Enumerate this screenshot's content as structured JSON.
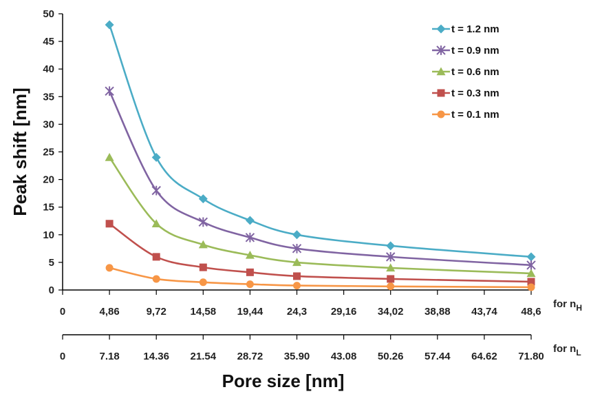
{
  "chart_data": {
    "type": "line",
    "ylabel": "Peak shift [nm]",
    "xlabel": "Pore size [nm]",
    "ylim": [
      0,
      50
    ],
    "yticks": [
      0,
      5,
      10,
      15,
      20,
      25,
      30,
      35,
      40,
      45,
      50
    ],
    "grid": false,
    "legend_position": "top-right",
    "x_axes": [
      {
        "label_main": "for n",
        "label_sub": "H",
        "ticks": [
          "0",
          "4,86",
          "9,72",
          "14,58",
          "19,44",
          "24,3",
          "29,16",
          "34,02",
          "38,88",
          "43,74",
          "48,6"
        ]
      },
      {
        "label_main": "for n",
        "label_sub": "L",
        "ticks": [
          "0",
          "7.18",
          "14.36",
          "21.54",
          "28.72",
          "35.90",
          "43.08",
          "50.26",
          "57.44",
          "64.62",
          "71.80"
        ]
      }
    ],
    "x": [
      4.86,
      9.72,
      14.58,
      19.44,
      24.3,
      34.02,
      48.6
    ],
    "xlim": [
      0,
      48.6
    ],
    "series": [
      {
        "name": "t = 1.2 nm",
        "color": "#4BACC6",
        "marker": "diamond",
        "values": [
          48,
          24,
          16.5,
          12.6,
          10,
          8,
          6
        ]
      },
      {
        "name": "t = 0.9 nm",
        "color": "#8064A2",
        "marker": "asterisk",
        "values": [
          36,
          18,
          12.3,
          9.5,
          7.5,
          6,
          4.5
        ]
      },
      {
        "name": "t = 0.6 nm",
        "color": "#9BBB59",
        "marker": "triangle",
        "values": [
          24,
          12,
          8.2,
          6.3,
          5,
          4,
          3
        ]
      },
      {
        "name": "t = 0.3 nm",
        "color": "#C0504D",
        "marker": "square",
        "values": [
          12,
          6,
          4.1,
          3.2,
          2.5,
          2,
          1.5
        ]
      },
      {
        "name": "t = 0.1 nm",
        "color": "#F79646",
        "marker": "circle",
        "values": [
          4,
          2,
          1.4,
          1.05,
          0.8,
          0.65,
          0.5
        ]
      }
    ]
  }
}
